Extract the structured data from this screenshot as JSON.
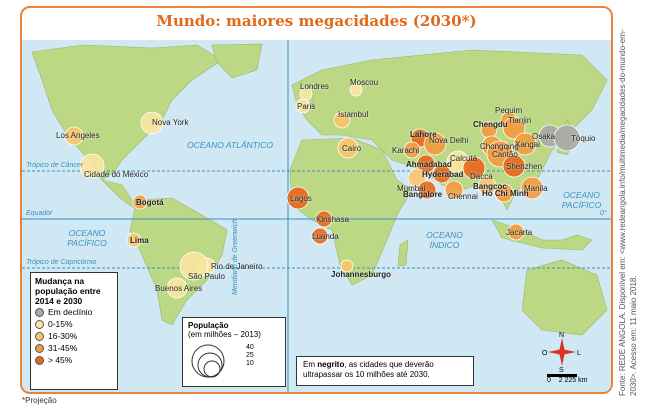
{
  "title": "Mundo: maiores megacidades (2030*)",
  "oceans": {
    "atlantico": "OCEANO ATLÂNTICO",
    "pacifico_w": "OCEANO PACÍFICO",
    "pacifico_e": "OCEANO PACÍFICO",
    "indico": "OCEANO ÍNDICO"
  },
  "lines": {
    "cancer": "Trópico de Câncer",
    "equator": "Equador",
    "capricorn": "Trópico de Capricórnio",
    "greenwich": "Meridiano de Greenwich",
    "zero": "0°"
  },
  "legend": {
    "title": "Mudança na população entre 2014 e 2030",
    "items": [
      {
        "label": "Em declínio",
        "color": "#a9a9a9"
      },
      {
        "label": "0-15%",
        "color": "#fbe6a0"
      },
      {
        "label": "16-30%",
        "color": "#f9c56a"
      },
      {
        "label": "31-45%",
        "color": "#f39a3c"
      },
      {
        "label": "> 45%",
        "color": "#e8661a"
      }
    ]
  },
  "population_legend": {
    "title": "População",
    "subtitle": "(em milhões – 2013)",
    "values": [
      "40",
      "25",
      "10"
    ]
  },
  "note": {
    "prefix": "Em ",
    "bold": "negrito",
    "suffix": ", as cidades que deverão ultrapassar os 10 milhões até 2030."
  },
  "compass": {
    "n": "N",
    "s": "S",
    "l": "L",
    "o": "O"
  },
  "scale": {
    "zero": "0",
    "distance": "2 225 km"
  },
  "source": "Fonte: REDE ANGOLA. Disponível em: <www.redeangola.info/multimedia/megacidades-do-mundo-em-2030>. Acesso em: 11 maio 2018.",
  "footnote": "*Projeção",
  "cities": [
    {
      "name": "Los Angeles",
      "bold": false,
      "change": 2
    },
    {
      "name": "Nova York",
      "bold": false,
      "change": 1
    },
    {
      "name": "Cidade do México",
      "bold": false,
      "change": 1
    },
    {
      "name": "Bogotá",
      "bold": true,
      "change": 3
    },
    {
      "name": "Lima",
      "bold": true,
      "change": 2
    },
    {
      "name": "Rio de Janeiro",
      "bold": false,
      "change": 1
    },
    {
      "name": "São Paulo",
      "bold": false,
      "change": 1
    },
    {
      "name": "Buenos Aires",
      "bold": false,
      "change": 1
    },
    {
      "name": "Londres",
      "bold": false,
      "change": 1
    },
    {
      "name": "Paris",
      "bold": false,
      "change": 1
    },
    {
      "name": "Moscou",
      "bold": false,
      "change": 1
    },
    {
      "name": "Istambul",
      "bold": false,
      "change": 2
    },
    {
      "name": "Cairo",
      "bold": false,
      "change": 2
    },
    {
      "name": "Lagos",
      "bold": false,
      "change": 4
    },
    {
      "name": "Kinshasa",
      "bold": false,
      "change": 4
    },
    {
      "name": "Luanda",
      "bold": false,
      "change": 4
    },
    {
      "name": "Johannesburgo",
      "bold": true,
      "change": 2
    },
    {
      "name": "Lahore",
      "bold": true,
      "change": 4
    },
    {
      "name": "Karachi",
      "bold": false,
      "change": 3
    },
    {
      "name": "Nova Delhi",
      "bold": false,
      "change": 3
    },
    {
      "name": "Ahmadabad",
      "bold": true,
      "change": 4
    },
    {
      "name": "Calcutá",
      "bold": false,
      "change": 1
    },
    {
      "name": "Mumbai",
      "bold": false,
      "change": 2
    },
    {
      "name": "Hyderabad",
      "bold": true,
      "change": 4
    },
    {
      "name": "Bangalore",
      "bold": true,
      "change": 4
    },
    {
      "name": "Chennai",
      "bold": false,
      "change": 3
    },
    {
      "name": "Dacca",
      "bold": false,
      "change": 4
    },
    {
      "name": "Chengdu",
      "bold": true,
      "change": 3
    },
    {
      "name": "Chongqing",
      "bold": false,
      "change": 3
    },
    {
      "name": "Pequim",
      "bold": false,
      "change": 3
    },
    {
      "name": "Tianjin",
      "bold": false,
      "change": 3
    },
    {
      "name": "Xangai",
      "bold": false,
      "change": 3
    },
    {
      "name": "Cantão",
      "bold": false,
      "change": 3
    },
    {
      "name": "Shenzhen",
      "bold": false,
      "change": 4
    },
    {
      "name": "Osaka",
      "bold": false,
      "change": 0
    },
    {
      "name": "Tóquio",
      "bold": false,
      "change": 0
    },
    {
      "name": "Bangcoc",
      "bold": true,
      "change": 2
    },
    {
      "name": "Ho Chi Minh",
      "bold": true,
      "change": 3
    },
    {
      "name": "Manila",
      "bold": false,
      "change": 3
    },
    {
      "name": "Jacarta",
      "bold": false,
      "change": 3
    }
  ]
}
